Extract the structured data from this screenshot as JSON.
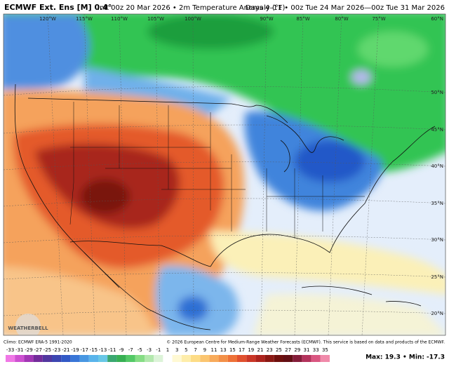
{
  "header": {
    "title": "ECMWF Ext. Ens [M] 0.4°",
    "subtitle": "Init 00z 20 Mar 2026 • 2m Temperature Anomaly (°F)",
    "valid": "Days 4–11 • 00z Tue 24 Mar 2026—00z Tue 31 Mar 2026"
  },
  "map": {
    "longitudes": [
      "120°W",
      "115°W",
      "110°W",
      "105°W",
      "100°W",
      "90°W",
      "85°W",
      "80°W",
      "75°W"
    ],
    "latitudes": [
      "60°N",
      "50°N",
      "45°N",
      "40°N",
      "35°N",
      "30°N",
      "25°N",
      "20°N"
    ],
    "logo": "WEATHERBELL"
  },
  "footer": {
    "climo": "Climo: ECMWF ERA-5 1991-2020",
    "copyright": "© 2026 European Centre for Medium-Range Weather Forecasts (ECMWF). This service is based on data and products of the ECMWF.",
    "colorbar": [
      -33,
      -31,
      -29,
      -27,
      -25,
      -23,
      -21,
      -19,
      -17,
      -15,
      -13,
      -11,
      -9,
      -7,
      -5,
      -3,
      -1,
      1,
      3,
      5,
      7,
      9,
      11,
      13,
      15,
      17,
      19,
      21,
      23,
      25,
      27,
      29,
      31,
      33,
      35
    ],
    "extremes": "Max: 19.3 • Min: -17.3"
  }
}
